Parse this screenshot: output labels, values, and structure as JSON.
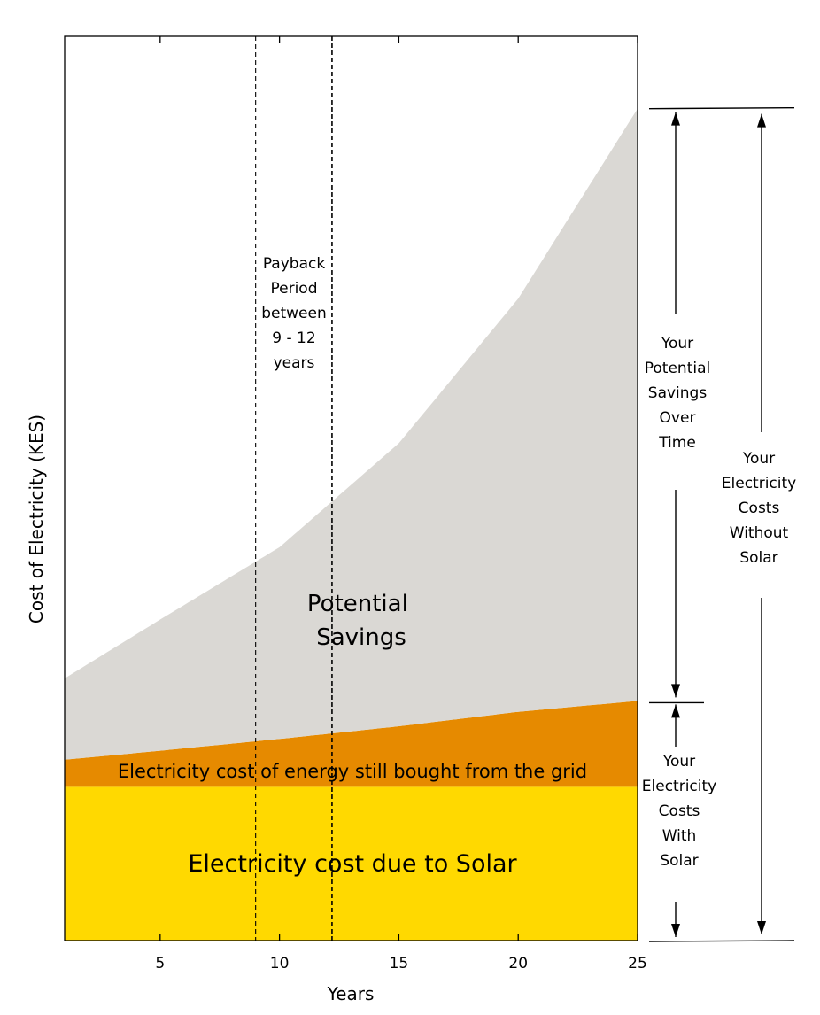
{
  "chart_data": {
    "type": "area",
    "xlabel": "Years",
    "ylabel": "Cost of Electricity (KES)",
    "x_ticks": [
      "5",
      "10",
      "15",
      "20",
      "25"
    ],
    "xlim": [
      1,
      25
    ],
    "ylim": [
      0,
      100
    ],
    "grid": false,
    "series": [
      {
        "key": "solar",
        "name": "Electricity cost due to Solar",
        "color": "#FFD900",
        "x": [
          1,
          25
        ],
        "values": [
          17,
          17
        ]
      },
      {
        "key": "grid",
        "name": "Electricity cost of energy still bought from the grid",
        "color": "#E68A00",
        "x": [
          1,
          5,
          10,
          15,
          20,
          25
        ],
        "values": [
          20,
          21,
          22.3,
          23.7,
          25.3,
          26.5
        ]
      },
      {
        "key": "savings",
        "name": "Potential Savings",
        "color": "#DAD8D4",
        "x": [
          1,
          5,
          10,
          15,
          20,
          25
        ],
        "values": [
          29,
          35.5,
          43.5,
          55,
          71,
          92
        ]
      }
    ],
    "payback": {
      "start": 9,
      "end": 12.2,
      "label": [
        "Payback",
        "Period",
        "between",
        "9 - 12",
        "years"
      ]
    },
    "annotations": {
      "savings_over_time": [
        "Your",
        "Potential",
        "Savings",
        "Over",
        "Time"
      ],
      "costs_with_solar": [
        "Your",
        "Electricity",
        "Costs",
        "With",
        "Solar"
      ],
      "costs_without_solar": [
        "Your",
        "Electricity",
        "Costs",
        "Without",
        "Solar"
      ]
    }
  }
}
